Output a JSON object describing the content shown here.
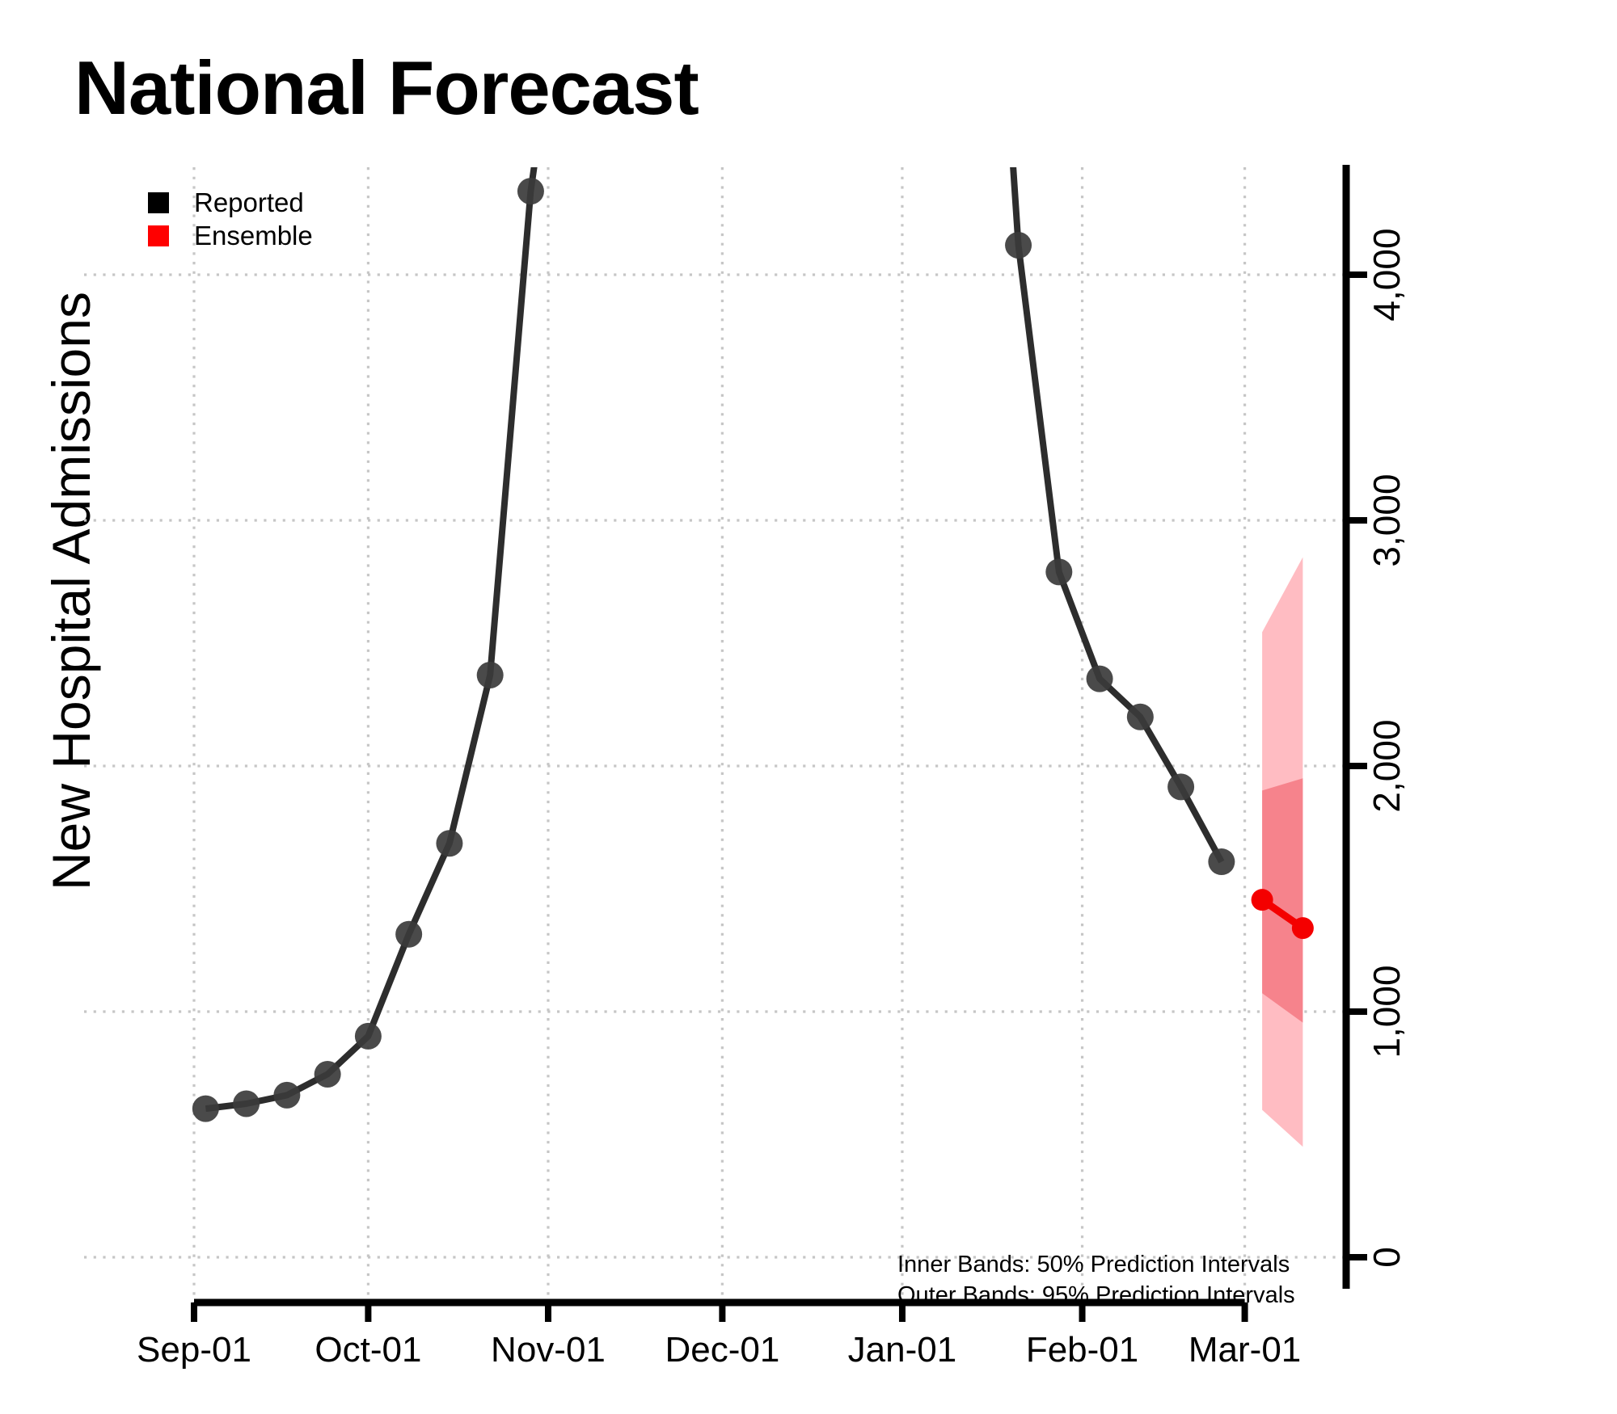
{
  "title": "National Forecast",
  "ylabel": "New Hospital Admissions",
  "legend": {
    "items": [
      {
        "label": "Reported",
        "color": "#000000"
      },
      {
        "label": "Ensemble",
        "color": "#ff0000"
      }
    ]
  },
  "annotations": {
    "line1": "Inner Bands: 50% Prediction Intervals",
    "line2": "Outer Bands: 95% Prediction Intervals"
  },
  "chart_data": {
    "type": "line",
    "title": "National Forecast",
    "ylabel": "New Hospital Admissions",
    "grid": true,
    "legend_position": "top-left",
    "x_axis": {
      "tick_labels": [
        "Sep-01",
        "Oct-01",
        "Nov-01",
        "Dec-01",
        "Jan-01",
        "Feb-01",
        "Mar-01"
      ],
      "tick_days": [
        0,
        30,
        61,
        91,
        122,
        153,
        181
      ]
    },
    "y_axis": {
      "ticks": [
        0,
        1000,
        2000,
        3000,
        4000
      ],
      "tick_labels": [
        "0",
        "1,000",
        "2,000",
        "3,000",
        "4,000"
      ],
      "ylim": [
        0,
        4440
      ]
    },
    "series": [
      {
        "name": "Reported",
        "segment": "first-wave",
        "line_color": "#2d2d2d",
        "marker_color": "#3b3b3b",
        "points": [
          {
            "date": "Sep-03",
            "day": 2,
            "value": 605
          },
          {
            "date": "Sep-10",
            "day": 9,
            "value": 625
          },
          {
            "date": "Sep-17",
            "day": 16,
            "value": 660
          },
          {
            "date": "Sep-24",
            "day": 23,
            "value": 745
          },
          {
            "date": "Oct-01",
            "day": 30,
            "value": 900
          },
          {
            "date": "Oct-08",
            "day": 37,
            "value": 1315
          },
          {
            "date": "Oct-15",
            "day": 44,
            "value": 1685
          },
          {
            "date": "Oct-22",
            "day": 51,
            "value": 2370
          },
          {
            "date": "Oct-29",
            "day": 58,
            "value": 4340
          }
        ],
        "offscreen_continuation": {
          "day": 58.6,
          "value": 4440,
          "position": "end"
        }
      },
      {
        "name": "Reported",
        "segment": "second-wave",
        "line_color": "#2d2d2d",
        "marker_color": "#3b3b3b",
        "points": [
          {
            "date": "Jan-21",
            "day": 142,
            "value": 4120
          },
          {
            "date": "Jan-28",
            "day": 149,
            "value": 2790
          },
          {
            "date": "Feb-04",
            "day": 156,
            "value": 2355
          },
          {
            "date": "Feb-11",
            "day": 163,
            "value": 2200
          },
          {
            "date": "Feb-18",
            "day": 170,
            "value": 1915
          },
          {
            "date": "Feb-25",
            "day": 177,
            "value": 1610
          }
        ],
        "offscreen_continuation": {
          "day": 141.1,
          "value": 4440,
          "position": "start"
        }
      },
      {
        "name": "Ensemble",
        "segment": "forecast",
        "line_color": "#f40000",
        "marker_color": "#f40000",
        "points": [
          {
            "date": "Mar-04",
            "day": 184,
            "value": 1455
          },
          {
            "date": "Mar-11",
            "day": 191,
            "value": 1340
          }
        ]
      }
    ],
    "bands": [
      {
        "name": "95% prediction interval",
        "color": "#ffbcc2",
        "points": [
          {
            "day": 184,
            "lower": 600,
            "upper": 2545
          },
          {
            "day": 191,
            "lower": 450,
            "upper": 2850
          }
        ]
      },
      {
        "name": "50% prediction interval",
        "color": "#f6838c",
        "points": [
          {
            "day": 184,
            "lower": 1075,
            "upper": 1900
          },
          {
            "day": 191,
            "lower": 955,
            "upper": 1950
          }
        ]
      }
    ]
  }
}
